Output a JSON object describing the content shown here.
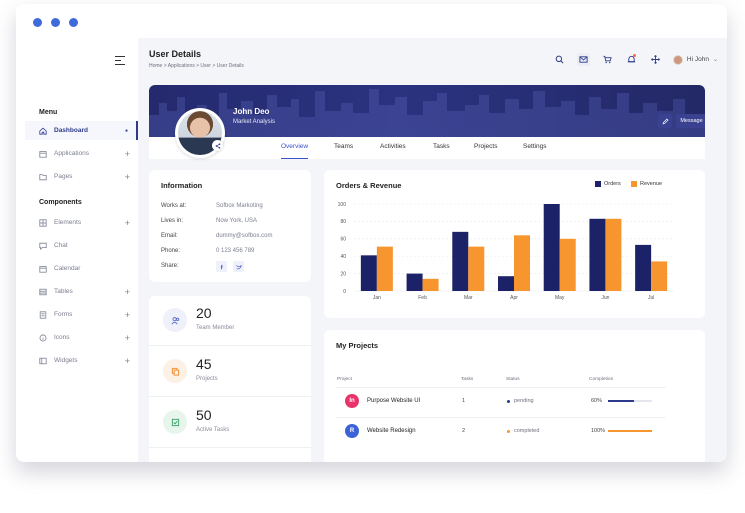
{
  "sidebar": {
    "sections": [
      "Menu",
      "Components"
    ],
    "items": [
      {
        "label": "Dashboard",
        "icon": "home-icon",
        "active": true
      },
      {
        "label": "Applications",
        "icon": "calendar-icon"
      },
      {
        "label": "Pages",
        "icon": "folder-icon"
      },
      {
        "label": "Elements",
        "icon": "grid-icon"
      },
      {
        "label": "Chat",
        "icon": "chat-icon"
      },
      {
        "label": "Calendar",
        "icon": "calendar-icon"
      },
      {
        "label": "Tables",
        "icon": "table-icon"
      },
      {
        "label": "Forms",
        "icon": "form-icon"
      },
      {
        "label": "Icons",
        "icon": "info-icon"
      },
      {
        "label": "Widgets",
        "icon": "widget-icon"
      }
    ]
  },
  "header": {
    "title": "User Details",
    "breadcrumb": "Home > Applications > User > User Details",
    "user_greeting": "Hi John"
  },
  "profile": {
    "name": "John Deo",
    "role": "Market Analysis",
    "message_label": "Message",
    "tabs": [
      "Overview",
      "Teams",
      "Activities",
      "Tasks",
      "Projects",
      "Settings"
    ]
  },
  "information": {
    "title": "Information",
    "rows": [
      {
        "label": "Works at:",
        "value": "Sofbox Markoting"
      },
      {
        "label": "Lives in:",
        "value": "Now York, USA"
      },
      {
        "label": "Email:",
        "value": "dummy@sofbox.com"
      },
      {
        "label": "Phone:",
        "value": "0 123 456 789"
      },
      {
        "label": "Share:",
        "value": ""
      }
    ]
  },
  "stats": [
    {
      "value": "20",
      "label": "Team Member",
      "icon": "users-icon",
      "color": "#5b6dc8",
      "bg": "#eef0fa"
    },
    {
      "value": "45",
      "label": "Projects",
      "icon": "copy-icon",
      "color": "#f0892b",
      "bg": "#fdf0e4"
    },
    {
      "value": "50",
      "label": "Active Tasks",
      "icon": "check-icon",
      "color": "#38a169",
      "bg": "#e7f5ec"
    }
  ],
  "chart_data": {
    "type": "bar",
    "title": "Orders & Revenue",
    "categories": [
      "Jan",
      "Feb",
      "Mar",
      "Apr",
      "May",
      "Jun",
      "Jul"
    ],
    "series": [
      {
        "name": "Orders",
        "values": [
          41,
          20,
          68,
          17,
          100,
          83,
          53
        ],
        "color": "#1c2268"
      },
      {
        "name": "Revenue",
        "values": [
          51,
          14,
          51,
          64,
          60,
          83,
          34
        ],
        "color": "#f7952f"
      }
    ],
    "ylim": [
      0,
      100
    ],
    "yticks": [
      "0",
      "20",
      "40",
      "60",
      "80",
      "100"
    ],
    "legend_position": "top-right",
    "grid": true
  },
  "projects": {
    "title": "My Projects",
    "headers": [
      "Project",
      "Tasks",
      "Status",
      "Completion"
    ],
    "rows": [
      {
        "name": "Purpose Website UI",
        "tasks": "1",
        "status": "pending",
        "status_color": "#2d3a8c",
        "completion": "60%",
        "progress": 60,
        "bar_color": "#2d3a8c",
        "logo": "In",
        "logo_color": "#e8336b"
      },
      {
        "name": "Website Redesign",
        "tasks": "2",
        "status": "completed",
        "status_color": "#f7952f",
        "completion": "100%",
        "progress": 100,
        "bar_color": "#f7952f",
        "logo": "R",
        "logo_color": "#3b63d6"
      }
    ]
  }
}
